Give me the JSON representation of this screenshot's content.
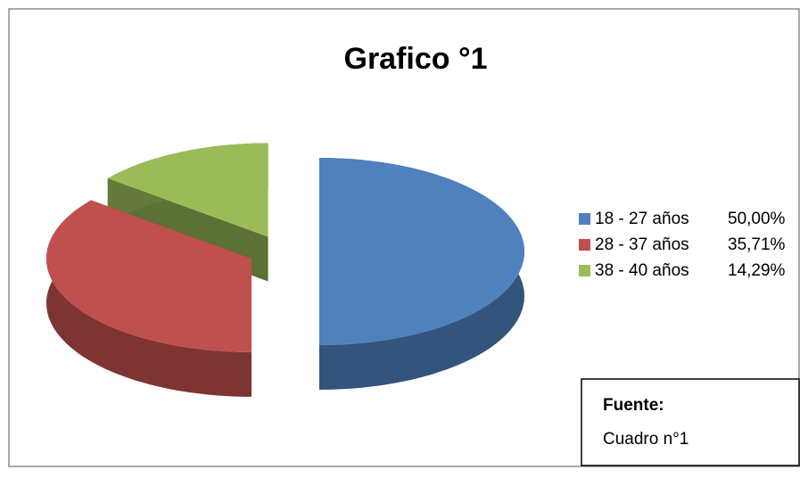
{
  "chart_data": {
    "type": "pie",
    "title": "Grafico °1",
    "categories": [
      "18 - 27 años",
      "28 - 37 años",
      "38 - 40 años"
    ],
    "values": [
      50,
      35.71,
      14.29
    ],
    "value_labels": [
      "50,00%",
      "35,71%",
      "14,29%"
    ],
    "colors": [
      "#4f81bd",
      "#c0504d",
      "#9bbb59"
    ],
    "legend": "right",
    "annotations": [
      "Fuente:",
      "Cuadro n°1"
    ]
  }
}
